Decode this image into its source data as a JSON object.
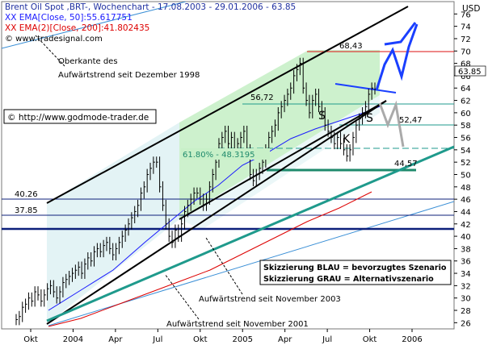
{
  "header": {
    "title": "Brent Oil Spot ,BRT-, Wochenchart - 17.08.2003 - 29.01.2006 - 63.85",
    "ema50": "XX EMA[Close, 50]:55.617751",
    "ema200": "XX EMA(2)[Close, 200]:41.802435",
    "source": "© www.tradesignal.com",
    "currency": "USD"
  },
  "watermark": "© http://www.godmode-trader.de",
  "annotations": {
    "top_trend": [
      "Oberkante des",
      "Aufwärtstrend seit Dezember 1998"
    ],
    "trend_2003": "Aufwärtstrend seit November 2003",
    "trend_2001": "Aufwärtstrend seit November 2001",
    "fib": "61.80% - 48.3195",
    "legend_blue": "Skizzierung BLAU = bevorzugtes Szenario",
    "legend_grey": "Skizzierung GRAU = Alternativszenario",
    "pattern": {
      "s1": "S",
      "k": "K",
      "s2": "S"
    }
  },
  "colors": {
    "price": "#000000",
    "ema50": "#1a1aff",
    "ema200": "#dd0000",
    "channel": "#000000",
    "teal": "#1f9a8c",
    "blue_sketch": "#1a3fff",
    "grey_sketch": "#aaaaaa",
    "level_dark": "#0c1f7a"
  },
  "chart_data": {
    "type": "line",
    "title": "Brent Oil Spot ,BRT-, Wochenchart - 17.08.2003 - 29.01.2006 - 63.85",
    "xlabel": "",
    "ylabel": "USD",
    "y_axis_side": "right",
    "ylim": [
      25,
      78
    ],
    "x_ticks": [
      "Okt",
      "2004",
      "Apr",
      "Jul",
      "Okt",
      "2005",
      "Apr",
      "Jul",
      "Okt",
      "2006"
    ],
    "y_ticks": [
      26,
      28,
      30,
      32,
      34,
      36,
      38,
      40,
      42,
      44,
      46,
      48,
      50,
      52,
      54,
      56,
      58,
      60,
      62,
      64,
      66,
      68,
      70,
      72,
      74,
      76
    ],
    "last_value": "63.85",
    "series": [
      {
        "name": "Brent Oil Spot ,BRT-",
        "values": [
          26.5,
          27,
          28.5,
          29,
          30,
          29.5,
          31,
          30.5,
          29.5,
          30.5,
          31.5,
          32,
          31,
          30,
          31,
          32.5,
          33,
          33.5,
          34,
          34.5,
          35,
          34,
          35.5,
          36.5,
          36,
          37.5,
          38,
          37.5,
          38.5,
          39,
          38,
          37,
          38,
          39,
          40,
          41,
          42,
          43,
          44,
          45,
          47,
          48,
          50,
          51,
          52,
          52,
          48,
          45,
          42,
          40,
          39,
          41,
          40,
          42,
          44,
          45,
          46,
          47,
          47,
          46,
          45,
          46,
          48,
          50,
          52,
          55,
          56,
          57,
          55,
          56,
          54,
          55,
          56,
          57,
          54,
          50,
          49,
          50,
          51,
          52,
          54,
          56,
          57,
          58,
          60,
          61,
          62,
          63,
          64,
          66,
          67,
          68,
          64,
          62,
          60,
          62,
          63,
          61,
          60,
          58,
          57,
          56,
          55,
          56,
          55,
          54,
          53,
          54,
          56,
          58,
          59,
          60,
          61,
          63,
          64,
          63.85
        ]
      }
    ],
    "levels": [
      {
        "label": "68,43",
        "value": 68.43
      },
      {
        "label": "56,72",
        "value": 56.72
      },
      {
        "label": "52,47",
        "value": 52.47
      },
      {
        "label": "44,57",
        "value": 44.57
      },
      {
        "label": "40.26",
        "value": 40.26
      },
      {
        "label": "37.85",
        "value": 37.85
      }
    ]
  }
}
